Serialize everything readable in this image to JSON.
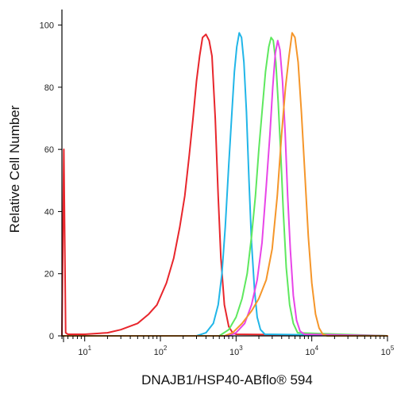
{
  "chart_data": {
    "type": "line",
    "title": "",
    "xlabel": "DNAJB1/HSP40-ABflo® 594",
    "ylabel": "Relative Cell Number",
    "x_scale": "log",
    "xlim": [
      5,
      100000
    ],
    "ylim": [
      0,
      105
    ],
    "x_ticks": [
      {
        "value": 10,
        "base": "10",
        "exp": "1"
      },
      {
        "value": 100,
        "base": "10",
        "exp": "2"
      },
      {
        "value": 1000,
        "base": "10",
        "exp": "3"
      },
      {
        "value": 10000,
        "base": "10",
        "exp": "4"
      },
      {
        "value": 100000,
        "base": "10",
        "exp": "5"
      }
    ],
    "y_ticks": [
      0,
      20,
      40,
      60,
      80,
      100
    ],
    "grid": false,
    "legend": "none",
    "series": [
      {
        "color": "#e8262c",
        "points": [
          [
            5,
            0
          ],
          [
            5.3,
            60
          ],
          [
            5.6,
            1
          ],
          [
            6,
            0.5
          ],
          [
            10,
            0.5
          ],
          [
            20,
            1
          ],
          [
            30,
            2
          ],
          [
            50,
            4
          ],
          [
            70,
            7
          ],
          [
            90,
            10
          ],
          [
            120,
            17
          ],
          [
            150,
            25
          ],
          [
            180,
            35
          ],
          [
            210,
            45
          ],
          [
            240,
            58
          ],
          [
            270,
            70
          ],
          [
            300,
            82
          ],
          [
            330,
            90
          ],
          [
            360,
            96
          ],
          [
            400,
            97
          ],
          [
            440,
            95
          ],
          [
            480,
            90
          ],
          [
            530,
            70
          ],
          [
            580,
            45
          ],
          [
            630,
            25
          ],
          [
            700,
            10
          ],
          [
            800,
            3
          ],
          [
            900,
            1
          ],
          [
            1000,
            0.5
          ],
          [
            100000,
            0
          ]
        ]
      },
      {
        "color": "#21b6e8",
        "points": [
          [
            5,
            0
          ],
          [
            300,
            0
          ],
          [
            400,
            1
          ],
          [
            500,
            4
          ],
          [
            580,
            10
          ],
          [
            650,
            20
          ],
          [
            720,
            35
          ],
          [
            800,
            55
          ],
          [
            880,
            72
          ],
          [
            950,
            85
          ],
          [
            1020,
            93
          ],
          [
            1100,
            97.5
          ],
          [
            1180,
            96
          ],
          [
            1270,
            88
          ],
          [
            1370,
            72
          ],
          [
            1480,
            50
          ],
          [
            1600,
            30
          ],
          [
            1750,
            15
          ],
          [
            1900,
            6
          ],
          [
            2100,
            2
          ],
          [
            2400,
            0.5
          ],
          [
            100000,
            0
          ]
        ]
      },
      {
        "color": "#5ee85e",
        "points": [
          [
            5,
            0
          ],
          [
            600,
            0
          ],
          [
            800,
            2
          ],
          [
            1000,
            6
          ],
          [
            1200,
            12
          ],
          [
            1400,
            20
          ],
          [
            1600,
            32
          ],
          [
            1800,
            45
          ],
          [
            2000,
            60
          ],
          [
            2200,
            72
          ],
          [
            2450,
            85
          ],
          [
            2700,
            93
          ],
          [
            2900,
            96
          ],
          [
            3100,
            95
          ],
          [
            3350,
            88
          ],
          [
            3600,
            75
          ],
          [
            3900,
            58
          ],
          [
            4200,
            40
          ],
          [
            4600,
            22
          ],
          [
            5100,
            10
          ],
          [
            5700,
            4
          ],
          [
            6500,
            1
          ],
          [
            100000,
            0
          ]
        ]
      },
      {
        "color": "#e845e8",
        "points": [
          [
            5,
            0
          ],
          [
            800,
            0
          ],
          [
            1000,
            1
          ],
          [
            1300,
            4
          ],
          [
            1600,
            10
          ],
          [
            1900,
            18
          ],
          [
            2200,
            30
          ],
          [
            2500,
            48
          ],
          [
            2800,
            65
          ],
          [
            3050,
            80
          ],
          [
            3300,
            91
          ],
          [
            3550,
            95
          ],
          [
            3800,
            92
          ],
          [
            4100,
            82
          ],
          [
            4450,
            65
          ],
          [
            4800,
            45
          ],
          [
            5200,
            28
          ],
          [
            5700,
            13
          ],
          [
            6300,
            5
          ],
          [
            7000,
            1.5
          ],
          [
            8000,
            0.5
          ],
          [
            100000,
            0
          ]
        ]
      },
      {
        "color": "#f5962a",
        "points": [
          [
            5,
            0
          ],
          [
            700,
            0
          ],
          [
            900,
            1
          ],
          [
            1200,
            4
          ],
          [
            1600,
            8
          ],
          [
            2000,
            12
          ],
          [
            2500,
            18
          ],
          [
            3000,
            28
          ],
          [
            3500,
            45
          ],
          [
            4000,
            65
          ],
          [
            4500,
            80
          ],
          [
            5000,
            90
          ],
          [
            5500,
            97.5
          ],
          [
            6000,
            96
          ],
          [
            6600,
            88
          ],
          [
            7300,
            72
          ],
          [
            8100,
            52
          ],
          [
            9000,
            32
          ],
          [
            10000,
            17
          ],
          [
            11200,
            7
          ],
          [
            12500,
            2.5
          ],
          [
            14000,
            0.5
          ],
          [
            16000,
            0
          ],
          [
            100000,
            0
          ]
        ]
      }
    ]
  }
}
